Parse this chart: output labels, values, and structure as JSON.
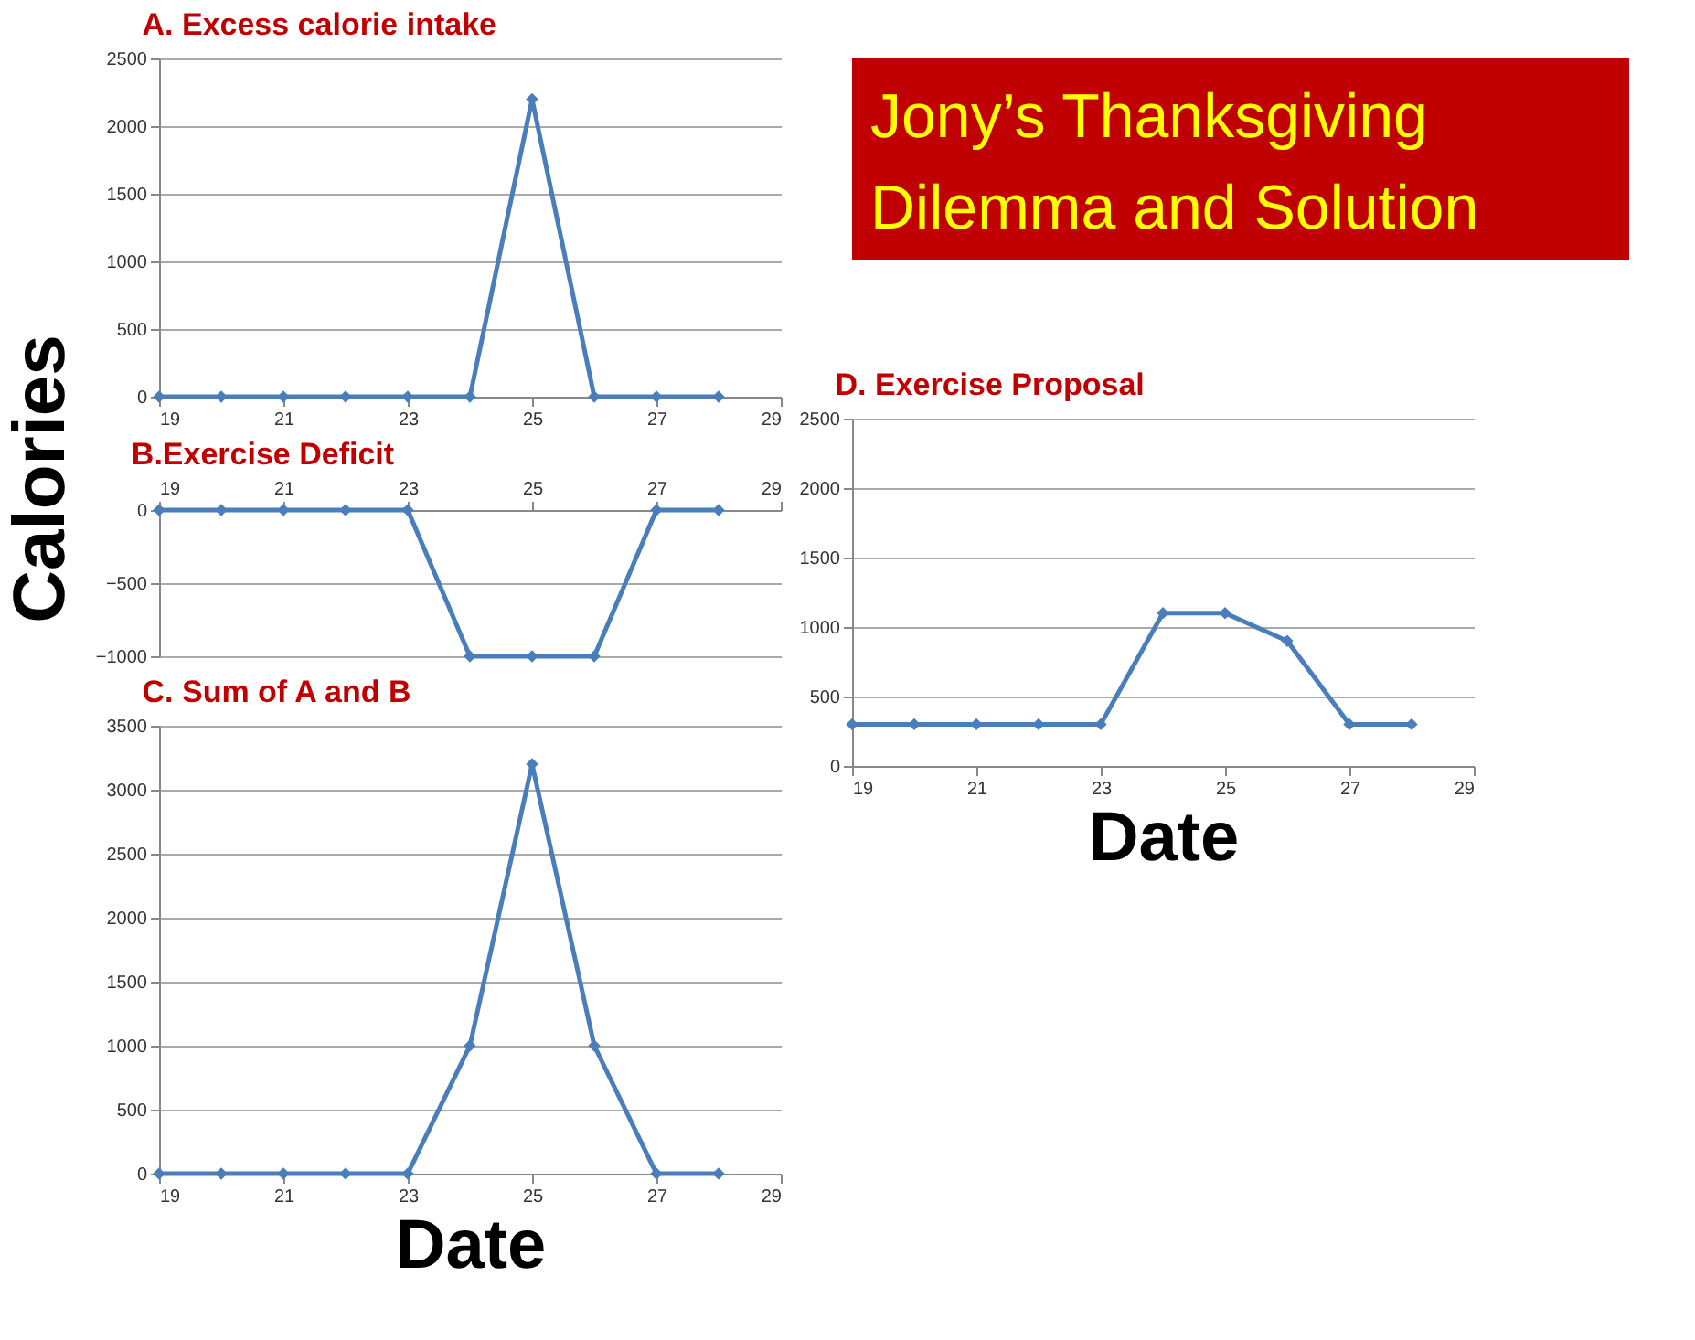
{
  "chart_data": [
    {
      "type": "line",
      "title": "A. Excess calorie intake",
      "x": [
        19,
        20,
        21,
        22,
        23,
        24,
        25,
        26,
        27,
        28
      ],
      "xlim": [
        19,
        29
      ],
      "xticks": [
        19,
        21,
        23,
        25,
        27,
        29
      ],
      "ylim": [
        0,
        2500
      ],
      "yticks": [
        0,
        500,
        1000,
        1500,
        2000,
        2500
      ],
      "grid": "y",
      "marker": "diamond",
      "legend": false,
      "series": [
        {
          "color": "#4a7ebb",
          "values": [
            0,
            0,
            0,
            0,
            0,
            0,
            2200,
            0,
            0,
            0
          ]
        }
      ]
    },
    {
      "type": "line",
      "title": "B.Exercise Deficit",
      "ylabel": "Calories",
      "x": [
        19,
        20,
        21,
        22,
        23,
        24,
        25,
        26,
        27,
        28
      ],
      "xlim": [
        19,
        29
      ],
      "xticks": [
        19,
        21,
        23,
        25,
        27,
        29
      ],
      "ylim": [
        -1000,
        0
      ],
      "yticks": [
        -1000,
        -500,
        0
      ],
      "grid": "y",
      "marker": "diamond",
      "legend": false,
      "series": [
        {
          "color": "#4a7ebb",
          "values": [
            0,
            0,
            0,
            0,
            0,
            -1000,
            -1000,
            -1000,
            0,
            0
          ]
        }
      ]
    },
    {
      "type": "line",
      "title": "C. Sum of A and B",
      "xlabel": "Date",
      "x": [
        19,
        20,
        21,
        22,
        23,
        24,
        25,
        26,
        27,
        28
      ],
      "xlim": [
        19,
        29
      ],
      "xticks": [
        19,
        21,
        23,
        25,
        27,
        29
      ],
      "ylim": [
        0,
        3500
      ],
      "yticks": [
        0,
        500,
        1000,
        1500,
        2000,
        2500,
        3000,
        3500
      ],
      "grid": "y",
      "marker": "diamond",
      "legend": false,
      "series": [
        {
          "color": "#4a7ebb",
          "values": [
            0,
            0,
            0,
            0,
            0,
            1000,
            3200,
            1000,
            0,
            0
          ]
        }
      ]
    },
    {
      "type": "other",
      "title": "Jony’s Thanksgiving Dilemma and Solution"
    },
    {
      "type": "line",
      "title": "D. Exercise Proposal",
      "xlabel": "Date",
      "x": [
        19,
        20,
        21,
        22,
        23,
        24,
        25,
        26,
        27,
        28
      ],
      "xlim": [
        19,
        29
      ],
      "xticks": [
        19,
        21,
        23,
        25,
        27,
        29
      ],
      "ylim": [
        0,
        2500
      ],
      "yticks": [
        0,
        500,
        1000,
        1500,
        2000,
        2500
      ],
      "grid": "y",
      "marker": "diamond",
      "legend": false,
      "series": [
        {
          "color": "#4a7ebb",
          "values": [
            300,
            300,
            300,
            300,
            300,
            1100,
            1100,
            900,
            300,
            300
          ]
        }
      ]
    }
  ]
}
